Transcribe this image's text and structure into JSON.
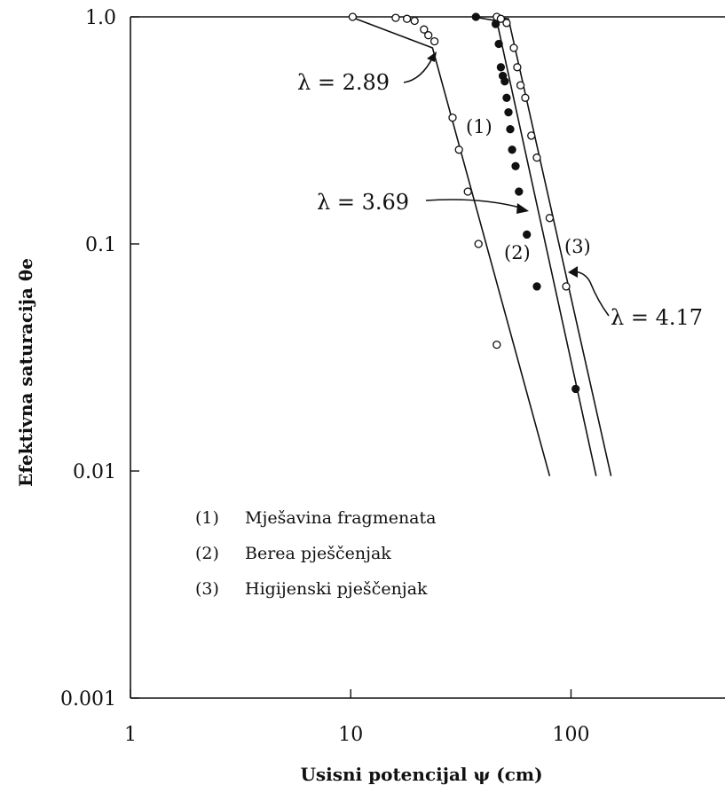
{
  "chart_data": {
    "type": "scatter",
    "xscale": "log",
    "yscale": "log",
    "xlim": [
      1,
      500
    ],
    "ylim": [
      0.001,
      1.0
    ],
    "xlabel": "Usisni potencijal ψ (cm)",
    "ylabel": "Efektivna saturacija θe",
    "x_ticks": [
      "1",
      "10",
      "100"
    ],
    "y_ticks": [
      "1.0",
      "0.1",
      "0.01",
      "0.001"
    ],
    "grid": false,
    "series": [
      {
        "name": "(1) Mješavina fragmenata",
        "curve_label": "(1)",
        "marker": "open-circle",
        "lambda_label": "λ = 2.89",
        "line": [
          [
            10,
            1.0
          ],
          [
            23.5,
            0.73
          ],
          [
            80,
            0.0095
          ]
        ],
        "points": [
          [
            10.2,
            1.0
          ],
          [
            16,
            0.99
          ],
          [
            18,
            0.98
          ],
          [
            19.5,
            0.96
          ],
          [
            21.5,
            0.88
          ],
          [
            22.5,
            0.83
          ],
          [
            24,
            0.78
          ],
          [
            29,
            0.36
          ],
          [
            31,
            0.26
          ],
          [
            34,
            0.17
          ],
          [
            38,
            0.1
          ],
          [
            46,
            0.036
          ]
        ]
      },
      {
        "name": "(2) Berea pješčenjak",
        "curve_label": "(2)",
        "marker": "filled-circle",
        "lambda_label": "λ = 3.69",
        "line": [
          [
            36,
            1.0
          ],
          [
            46,
            0.96
          ],
          [
            130,
            0.0095
          ]
        ],
        "points": [
          [
            37,
            1.0
          ],
          [
            45.5,
            0.93
          ],
          [
            47,
            0.76
          ],
          [
            48,
            0.6
          ],
          [
            49,
            0.55
          ],
          [
            50,
            0.52
          ],
          [
            51,
            0.44
          ],
          [
            52,
            0.38
          ],
          [
            53,
            0.32
          ],
          [
            54,
            0.26
          ],
          [
            56,
            0.22
          ],
          [
            58,
            0.17
          ],
          [
            63,
            0.11
          ],
          [
            70,
            0.065
          ],
          [
            105,
            0.023
          ]
        ]
      },
      {
        "name": "(3) Higijenski pješčenjak",
        "curve_label": "(3)",
        "marker": "open-circle",
        "lambda_label": "λ = 4.17",
        "line": [
          [
            44,
            1.0
          ],
          [
            52,
            0.98
          ],
          [
            152,
            0.0095
          ]
        ],
        "points": [
          [
            46,
            1.0
          ],
          [
            48,
            0.98
          ],
          [
            51,
            0.94
          ],
          [
            55,
            0.73
          ],
          [
            57,
            0.6
          ],
          [
            59,
            0.5
          ],
          [
            62,
            0.44
          ],
          [
            66,
            0.3
          ],
          [
            70,
            0.24
          ],
          [
            80,
            0.13
          ],
          [
            95,
            0.065
          ]
        ]
      }
    ],
    "legend": [
      {
        "num": "(1)",
        "text": "Mješavina fragmenata"
      },
      {
        "num": "(2)",
        "text": "Berea pješčenjak"
      },
      {
        "num": "(3)",
        "text": "Higijenski pješčenjak"
      }
    ],
    "legend_position": "lower-left"
  }
}
